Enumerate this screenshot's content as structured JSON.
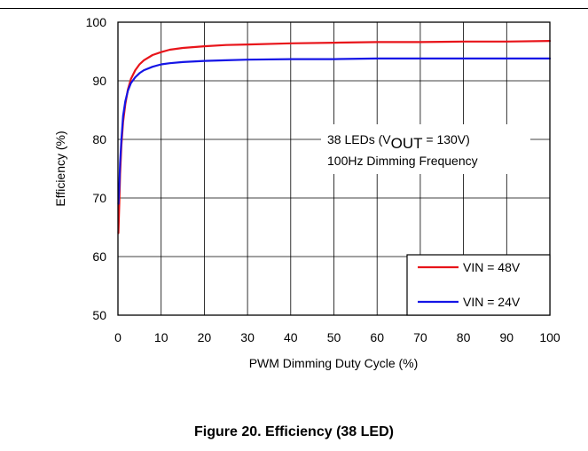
{
  "figure_caption": "Figure 20. Efficiency (38 LED)",
  "chart_data": {
    "type": "line",
    "title": "",
    "xlabel": "PWM Dimming Duty Cycle (%)",
    "ylabel": "Efficiency (%)",
    "xlim": [
      0,
      100
    ],
    "ylim": [
      50,
      100
    ],
    "xticks": [
      0,
      10,
      20,
      30,
      40,
      50,
      60,
      70,
      80,
      90,
      100
    ],
    "yticks": [
      50,
      60,
      70,
      80,
      90,
      100
    ],
    "grid": true,
    "legend_position": "bottom-right",
    "annotation": {
      "line1_prefix": "38 LEDs (V",
      "line1_subscript": "OUT",
      "line1_suffix": " = 130V)",
      "line2": "100Hz Dimming Frequency"
    },
    "series": [
      {
        "name": "VIN = 48V",
        "color": "#e8141a",
        "points": [
          [
            0.1,
            64
          ],
          [
            0.3,
            69
          ],
          [
            0.5,
            74
          ],
          [
            0.8,
            79
          ],
          [
            1.2,
            83
          ],
          [
            1.7,
            86
          ],
          [
            2.3,
            88.5
          ],
          [
            3,
            90.3
          ],
          [
            4,
            91.8
          ],
          [
            5,
            92.8
          ],
          [
            6,
            93.5
          ],
          [
            8,
            94.4
          ],
          [
            10,
            94.9
          ],
          [
            12,
            95.3
          ],
          [
            15,
            95.6
          ],
          [
            20,
            95.9
          ],
          [
            25,
            96.1
          ],
          [
            30,
            96.2
          ],
          [
            40,
            96.4
          ],
          [
            50,
            96.5
          ],
          [
            60,
            96.6
          ],
          [
            70,
            96.6
          ],
          [
            80,
            96.7
          ],
          [
            90,
            96.7
          ],
          [
            100,
            96.8
          ]
        ]
      },
      {
        "name": "VIN = 24V",
        "color": "#1515e6",
        "points": [
          [
            0.1,
            69
          ],
          [
            0.3,
            72
          ],
          [
            0.5,
            76
          ],
          [
            0.8,
            80
          ],
          [
            1.2,
            84
          ],
          [
            1.7,
            86.5
          ],
          [
            2.3,
            88.3
          ],
          [
            3,
            89.6
          ],
          [
            4,
            90.6
          ],
          [
            5,
            91.3
          ],
          [
            6,
            91.8
          ],
          [
            8,
            92.4
          ],
          [
            10,
            92.8
          ],
          [
            12,
            93.0
          ],
          [
            15,
            93.2
          ],
          [
            20,
            93.4
          ],
          [
            25,
            93.5
          ],
          [
            30,
            93.6
          ],
          [
            40,
            93.7
          ],
          [
            50,
            93.7
          ],
          [
            60,
            93.8
          ],
          [
            70,
            93.8
          ],
          [
            80,
            93.8
          ],
          [
            90,
            93.8
          ],
          [
            100,
            93.8
          ]
        ]
      }
    ]
  }
}
